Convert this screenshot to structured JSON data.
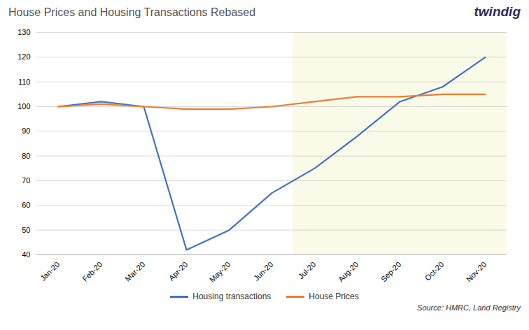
{
  "chart_data": {
    "type": "line",
    "title": "House Prices and Housing Transactions  Rebased",
    "categories": [
      "Jan-20",
      "Feb-20",
      "Mar-20",
      "Apr-20",
      "May-20",
      "Jun-20",
      "Jul-20",
      "Aug-20",
      "Sep-20",
      "Oct-20",
      "Nov-20"
    ],
    "series": [
      {
        "name": "Housing transactions",
        "color": "#4472C4",
        "values": [
          100,
          102,
          100,
          42,
          50,
          65,
          75,
          88,
          102,
          108,
          120
        ]
      },
      {
        "name": "House Prices",
        "color": "#ED7D31",
        "values": [
          100,
          101,
          100,
          99,
          99,
          100,
          102,
          104,
          104,
          105,
          105
        ]
      }
    ],
    "highlight": {
      "start": "Jul-20",
      "end": "Nov-20",
      "color": "#FAFAE8"
    },
    "ylim": [
      40,
      130
    ],
    "yticks": [
      40,
      50,
      60,
      70,
      80,
      90,
      100,
      110,
      120,
      130
    ],
    "grid": true,
    "legend": "bottom",
    "annotations": [
      {
        "text": "twindig",
        "color": "#2d2d5e"
      },
      {
        "text": "Source: HMRC, Land Registry"
      }
    ]
  }
}
